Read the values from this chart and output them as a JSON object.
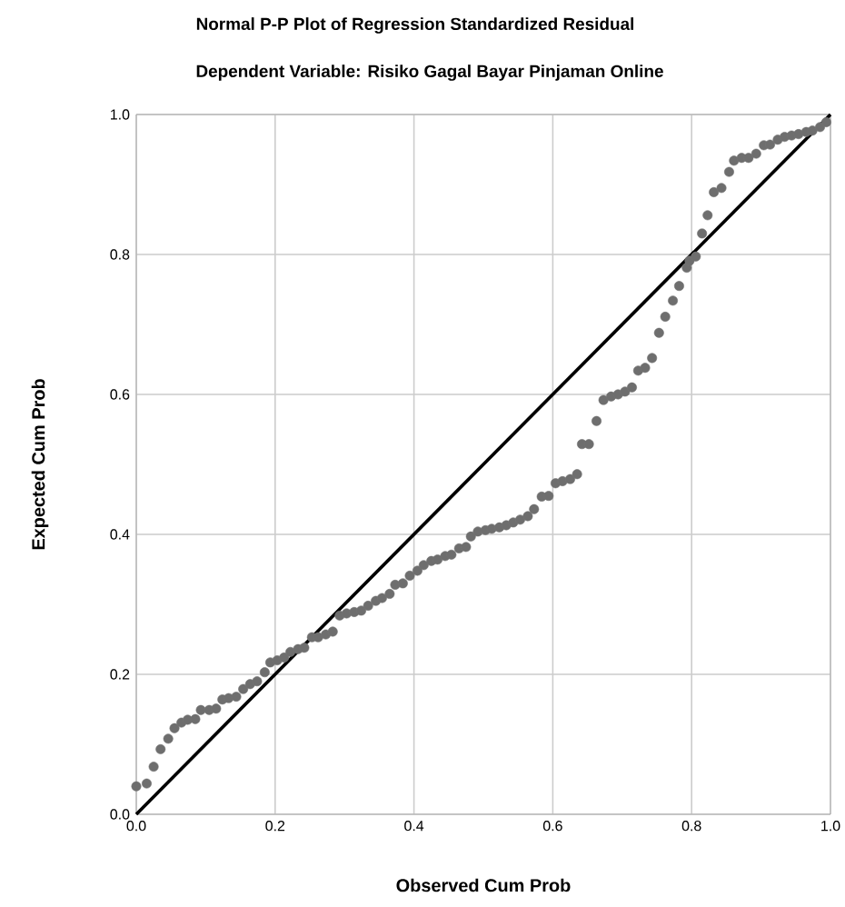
{
  "chart_data": {
    "type": "scatter",
    "title": "Normal P-P Plot of Regression Standardized Residual",
    "subtitle": "Dependent Variable: Risiko Gagal Bayar Pinjaman Online",
    "xlabel": "Observed Cum Prob",
    "ylabel": "Expected Cum Prob",
    "xlim": [
      0,
      1
    ],
    "ylim": [
      0,
      1
    ],
    "xticks": [
      {
        "value": 0,
        "label": "0.0"
      },
      {
        "value": 0.2,
        "label": "0.2"
      },
      {
        "value": 0.4,
        "label": "0.4"
      },
      {
        "value": 0.6,
        "label": "0.6"
      },
      {
        "value": 0.8,
        "label": "0.8"
      },
      {
        "value": 1,
        "label": "1.0"
      }
    ],
    "yticks": [
      {
        "value": 0,
        "label": "0.0"
      },
      {
        "value": 0.2,
        "label": "0.2"
      },
      {
        "value": 0.4,
        "label": "0.4"
      },
      {
        "value": 0.6,
        "label": "0.6"
      },
      {
        "value": 0.8,
        "label": "0.8"
      },
      {
        "value": 1,
        "label": "1.0"
      }
    ],
    "grid": true,
    "line_style": "solid",
    "series": [
      {
        "marker": "circle",
        "color": "#6e6e6e",
        "x": [
          0.0,
          0.015,
          0.025,
          0.035,
          0.046,
          0.055,
          0.065,
          0.074,
          0.085,
          0.093,
          0.105,
          0.115,
          0.124,
          0.133,
          0.144,
          0.154,
          0.164,
          0.174,
          0.185,
          0.193,
          0.203,
          0.213,
          0.222,
          0.233,
          0.242,
          0.253,
          0.262,
          0.273,
          0.283,
          0.293,
          0.303,
          0.314,
          0.324,
          0.334,
          0.345,
          0.354,
          0.365,
          0.373,
          0.384,
          0.394,
          0.405,
          0.414,
          0.425,
          0.434,
          0.445,
          0.454,
          0.465,
          0.475,
          0.482,
          0.492,
          0.503,
          0.512,
          0.523,
          0.533,
          0.543,
          0.553,
          0.564,
          0.573,
          0.584,
          0.594,
          0.604,
          0.614,
          0.625,
          0.635,
          0.642,
          0.652,
          0.663,
          0.673,
          0.684,
          0.694,
          0.704,
          0.714,
          0.723,
          0.733,
          0.743,
          0.753,
          0.762,
          0.773,
          0.782,
          0.793,
          0.797,
          0.806,
          0.815,
          0.823,
          0.832,
          0.843,
          0.854,
          0.861,
          0.872,
          0.882,
          0.893,
          0.904,
          0.913,
          0.924,
          0.934,
          0.944,
          0.954,
          0.965,
          0.974,
          0.985,
          0.994
        ],
        "values": [
          0.04,
          0.044,
          0.068,
          0.093,
          0.108,
          0.123,
          0.131,
          0.135,
          0.136,
          0.149,
          0.149,
          0.151,
          0.164,
          0.166,
          0.168,
          0.179,
          0.186,
          0.19,
          0.203,
          0.217,
          0.22,
          0.224,
          0.232,
          0.236,
          0.238,
          0.253,
          0.253,
          0.257,
          0.261,
          0.284,
          0.287,
          0.289,
          0.291,
          0.298,
          0.305,
          0.309,
          0.315,
          0.328,
          0.33,
          0.341,
          0.348,
          0.356,
          0.362,
          0.364,
          0.369,
          0.371,
          0.38,
          0.382,
          0.397,
          0.404,
          0.406,
          0.408,
          0.41,
          0.413,
          0.417,
          0.421,
          0.426,
          0.436,
          0.454,
          0.455,
          0.473,
          0.476,
          0.479,
          0.486,
          0.529,
          0.529,
          0.562,
          0.592,
          0.597,
          0.6,
          0.604,
          0.61,
          0.634,
          0.638,
          0.652,
          0.688,
          0.711,
          0.734,
          0.755,
          0.781,
          0.791,
          0.797,
          0.83,
          0.856,
          0.889,
          0.895,
          0.918,
          0.934,
          0.938,
          0.938,
          0.944,
          0.956,
          0.957,
          0.964,
          0.968,
          0.97,
          0.972,
          0.975,
          0.977,
          0.982,
          0.989
        ]
      },
      {
        "type": "line",
        "marker": "none",
        "color": "#000000",
        "x": [
          0,
          1
        ],
        "values": [
          0,
          1
        ]
      }
    ]
  }
}
